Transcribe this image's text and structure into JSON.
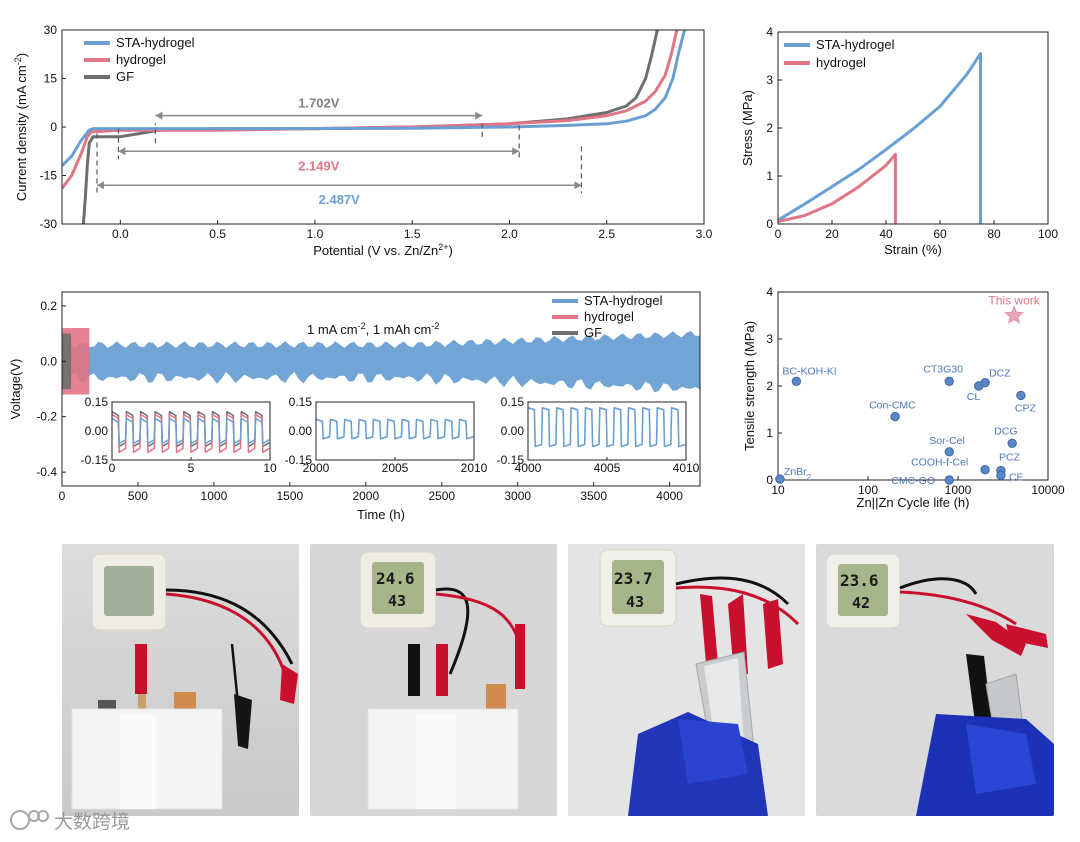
{
  "chart_data": [
    {
      "id": "lsv",
      "type": "line",
      "xlabel": "Potential (V vs. Zn/Zn",
      "xlabel_sup": "2+",
      "xlabel_tail": ")",
      "ylabel": "Current density (mA cm",
      "ylabel_sup": "-2",
      "ylabel_tail": ")",
      "xlim": [
        -0.3,
        3.0
      ],
      "ylim": [
        -30,
        30
      ],
      "xticks": [
        "0.0",
        "0.5",
        "1.0",
        "1.5",
        "2.0",
        "2.5",
        "3.0"
      ],
      "xtick_values": [
        0.0,
        0.5,
        1.0,
        1.5,
        2.0,
        2.5,
        3.0
      ],
      "yticks": [
        "-30",
        "-15",
        "0",
        "15",
        "30"
      ],
      "ytick_values": [
        -30,
        -15,
        0,
        15,
        30
      ],
      "legend": [
        "STA-hydrogel",
        "hydrogel",
        "GF"
      ],
      "series": [
        {
          "name": "STA-hydrogel",
          "color": "#6a9fd4",
          "x": [
            -0.3,
            -0.25,
            -0.2,
            -0.16,
            -0.14,
            0.0,
            0.5,
            1.0,
            1.5,
            2.0,
            2.3,
            2.5,
            2.6,
            2.7,
            2.75,
            2.8,
            2.84,
            2.87,
            2.9
          ],
          "y": [
            -12,
            -9,
            -4,
            -1,
            -0.5,
            -0.5,
            -0.5,
            -0.5,
            -0.4,
            0.0,
            0.5,
            1.0,
            1.8,
            3.5,
            5.5,
            9,
            15,
            23,
            30
          ]
        },
        {
          "name": "hydrogel",
          "color": "#e07585",
          "x": [
            -0.3,
            -0.25,
            -0.2,
            -0.17,
            -0.15,
            0.0,
            0.5,
            1.0,
            1.5,
            2.0,
            2.3,
            2.5,
            2.6,
            2.7,
            2.75,
            2.8,
            2.83,
            2.86
          ],
          "y": [
            -19,
            -15,
            -8,
            -3,
            -1.5,
            -1,
            -1,
            -0.5,
            0,
            1,
            2,
            3.5,
            5,
            8,
            11,
            16,
            22,
            30
          ]
        },
        {
          "name": "GF",
          "color": "#6e6e6e",
          "x": [
            -0.19,
            -0.18,
            -0.17,
            -0.16,
            -0.14,
            -0.1,
            0.0,
            0.1,
            0.2,
            0.5,
            1.0,
            1.5,
            2.0,
            2.3,
            2.5,
            2.6,
            2.65,
            2.7,
            2.73,
            2.76
          ],
          "y": [
            -30,
            -22,
            -12,
            -5,
            -3,
            -3,
            -3,
            -2,
            -1,
            -0.5,
            -0.5,
            0,
            1,
            2.5,
            4.5,
            6.5,
            9,
            15,
            22,
            30
          ]
        }
      ],
      "annotations": [
        {
          "label": "1.702V",
          "from": 0.18,
          "to": 1.86,
          "y": 3.5,
          "color": "#7f7f7f",
          "drops": [
            [
              0.18,
              -5
            ],
            [
              1.86,
              -3
            ]
          ]
        },
        {
          "label": "2.149V",
          "from": -0.01,
          "to": 2.05,
          "y": -7.5,
          "color": "#e07585",
          "drops": [
            [
              -0.01,
              -0.5
            ],
            [
              2.05,
              0.5
            ]
          ]
        },
        {
          "label": "2.487V",
          "from": -0.12,
          "to": 2.37,
          "y": -18,
          "color": "#6a9fd4",
          "drops": [
            [
              -0.12,
              -2
            ],
            [
              2.37,
              -6
            ]
          ]
        }
      ]
    },
    {
      "id": "stress",
      "type": "line",
      "xlabel": "Strain (%)",
      "ylabel": "Stress (MPa)",
      "xlim": [
        0,
        100
      ],
      "ylim": [
        0,
        4
      ],
      "xticks": [
        "0",
        "20",
        "40",
        "60",
        "80",
        "100"
      ],
      "xtick_values": [
        0,
        20,
        40,
        60,
        80,
        100
      ],
      "yticks": [
        "0",
        "1",
        "2",
        "3",
        "4"
      ],
      "ytick_values": [
        0,
        1,
        2,
        3,
        4
      ],
      "legend": [
        "STA-hydrogel",
        "hydrogel"
      ],
      "series": [
        {
          "name": "STA-hydrogel",
          "color": "#6a9fd4",
          "x": [
            0,
            10,
            20,
            30,
            40,
            50,
            60,
            70,
            75,
            75
          ],
          "y": [
            0.08,
            0.42,
            0.78,
            1.14,
            1.55,
            1.98,
            2.45,
            3.12,
            3.55,
            0
          ]
        },
        {
          "name": "hydrogel",
          "color": "#e07585",
          "x": [
            0,
            10,
            20,
            30,
            40,
            43.5,
            43.5
          ],
          "y": [
            0.05,
            0.18,
            0.42,
            0.78,
            1.22,
            1.45,
            0
          ]
        }
      ]
    },
    {
      "id": "cycling",
      "type": "line",
      "xlabel": "Time (h)",
      "ylabel": "Voltage(V)",
      "xlim": [
        0,
        4200
      ],
      "ylim": [
        -0.45,
        0.25
      ],
      "xticks": [
        "0",
        "500",
        "1000",
        "1500",
        "2000",
        "2500",
        "3000",
        "3500",
        "4000"
      ],
      "xtick_values": [
        0,
        500,
        1000,
        1500,
        2000,
        2500,
        3000,
        3500,
        4000
      ],
      "yticks": [
        "0.2",
        "0.0",
        "-0.2",
        "-0.4"
      ],
      "ytick_values": [
        0.2,
        0.0,
        -0.2,
        -0.4
      ],
      "legend": [
        "STA-hydrogel",
        "hydrogel",
        "GF"
      ],
      "condition_text": "1 mA cm",
      "condition_sup1": "-2",
      "condition_mid": ", 1 mAh cm",
      "condition_sup2": "-2",
      "series": [
        {
          "name": "STA-hydrogel",
          "color": "#6a9fd4",
          "x_range": [
            0,
            4200
          ],
          "amplitude": [
            0.06,
            0.1
          ]
        },
        {
          "name": "hydrogel",
          "color": "#e07585",
          "x_range": [
            0,
            180
          ],
          "amplitude": [
            0.12
          ]
        },
        {
          "name": "GF",
          "color": "#6e6e6e",
          "x_range": [
            0,
            60
          ],
          "amplitude": [
            0.1
          ]
        }
      ],
      "insets": [
        {
          "xlim": [
            0,
            10
          ],
          "xticks": [
            "0",
            "5",
            "10"
          ],
          "xtick_values": [
            0,
            5,
            10
          ],
          "yticks": [
            "0.15",
            "0.00",
            "-0.15"
          ],
          "ytick_values": [
            0.15,
            0.0,
            -0.15
          ]
        },
        {
          "xlim": [
            2000,
            2010
          ],
          "xticks": [
            "2000",
            "2005",
            "2010"
          ],
          "xtick_values": [
            2000,
            2005,
            2010
          ],
          "yticks": [
            "0.15",
            "0.00",
            "-0.15"
          ],
          "ytick_values": [
            0.15,
            0.0,
            -0.15
          ]
        },
        {
          "xlim": [
            4000,
            4010
          ],
          "xticks": [
            "4000",
            "4005",
            "4010"
          ],
          "xtick_values": [
            4000,
            4005,
            4010
          ],
          "yticks": [
            "0.15",
            "0.00",
            "-0.15"
          ],
          "ytick_values": [
            0.15,
            0.0,
            -0.15
          ]
        }
      ]
    },
    {
      "id": "comparison",
      "type": "scatter",
      "xlabel": "Zn||Zn Cycle life (h)",
      "ylabel": "Tensile strength (MPa)",
      "xscale": "log",
      "xlim": [
        10,
        10000
      ],
      "ylim": [
        0,
        4
      ],
      "xticks": [
        "10",
        "100",
        "1000",
        "10000"
      ],
      "xtick_values": [
        10,
        100,
        1000,
        10000
      ],
      "yticks": [
        "0",
        "1",
        "2",
        "3",
        "4"
      ],
      "ytick_values": [
        0,
        1,
        2,
        3,
        4
      ],
      "highlight": {
        "label": "This work",
        "x": 4200,
        "y": 3.5,
        "color": "#e8899a"
      },
      "points": [
        {
          "label": "ZnBr",
          "sub": "2",
          "x": 10.5,
          "y": 0.02
        },
        {
          "label": "BC-KOH-KI",
          "x": 16,
          "y": 2.1
        },
        {
          "label": "Con-CMC",
          "x": 200,
          "y": 1.35
        },
        {
          "label": "CT3G30",
          "x": 800,
          "y": 2.1
        },
        {
          "label": "CL",
          "x": 1700,
          "y": 2.0
        },
        {
          "label": "DCZ",
          "x": 2000,
          "y": 2.07
        },
        {
          "label": "CPZ",
          "x": 5000,
          "y": 1.8
        },
        {
          "label": "Sor-Cel",
          "x": 800,
          "y": 0.6
        },
        {
          "label": "DCG",
          "x": 4000,
          "y": 0.78
        },
        {
          "label": "COOH-f-Cel",
          "x": 2000,
          "y": 0.22
        },
        {
          "label": "PCZ",
          "x": 3000,
          "y": 0.2
        },
        {
          "label": "CMC-GO",
          "x": 800,
          "y": 0.0
        },
        {
          "label": "CE",
          "x": 3000,
          "y": 0.1
        }
      ]
    }
  ],
  "photos": [
    {
      "thermo_temp": "",
      "thermo_humidity": ""
    },
    {
      "thermo_temp": "24.6",
      "thermo_humidity": "43"
    },
    {
      "thermo_temp": "23.7",
      "thermo_humidity": "43"
    },
    {
      "thermo_temp": "23.6",
      "thermo_humidity": "42"
    }
  ],
  "watermark": "大数跨境"
}
